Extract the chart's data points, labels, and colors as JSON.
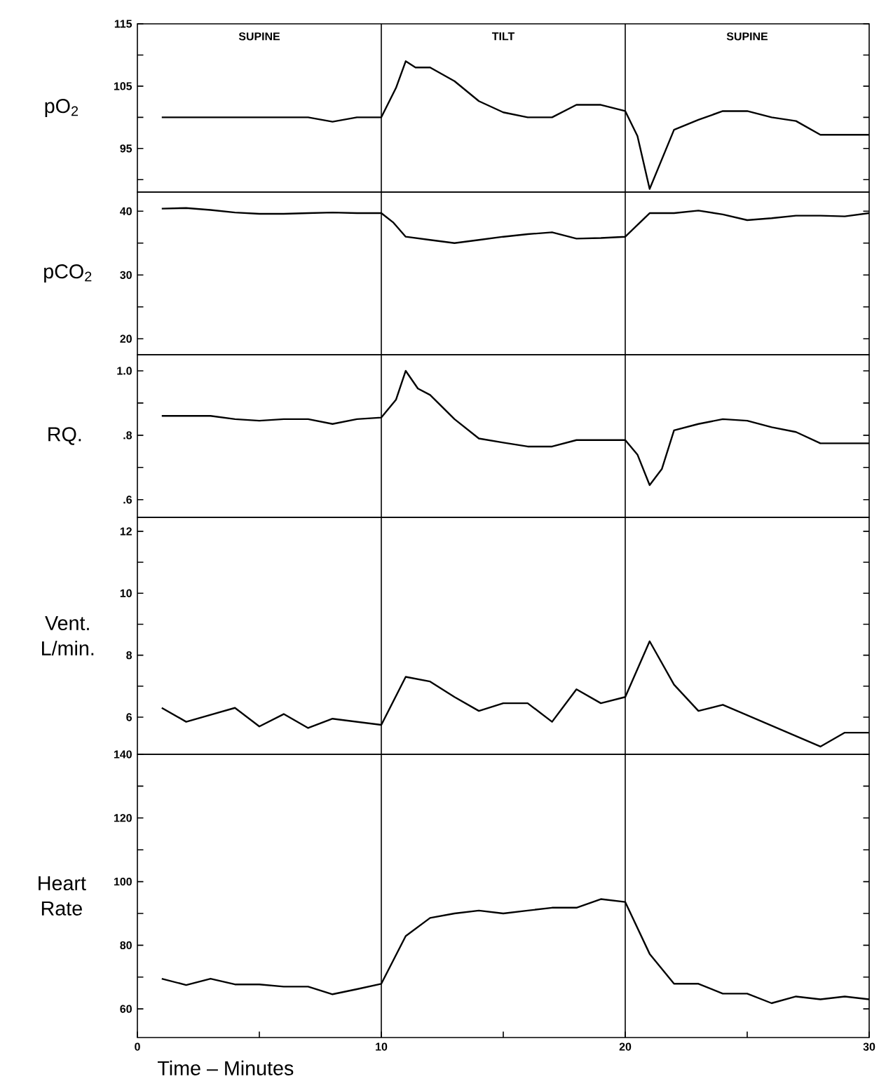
{
  "chart_data": [
    {
      "type": "line",
      "ylabel": "pO$_{2}$",
      "xlim": [
        0,
        30
      ],
      "ylim": [
        88,
        115
      ],
      "tick_labels": "y",
      "yticks": [
        {
          "value": 90,
          "label": null
        },
        95,
        {
          "value": 100,
          "label": null
        },
        105,
        {
          "value": 110,
          "label": null
        },
        115
      ],
      "x": [
        1,
        7,
        8,
        9,
        10,
        10.6,
        11,
        11.4,
        12,
        13,
        14,
        15,
        16,
        17,
        18,
        19,
        20,
        20.5,
        21,
        22,
        23,
        24,
        25,
        26,
        27,
        28,
        30
      ],
      "values": [
        100,
        100,
        99.3,
        100,
        100,
        104.7,
        109,
        108,
        108,
        105.8,
        102.6,
        100.8,
        100,
        100,
        102,
        102,
        101,
        97,
        88.5,
        98,
        99.6,
        101,
        101,
        100,
        99.4,
        97.2,
        97.2
      ],
      "color": "#000000",
      "ref_lines": [
        {
          "axis": "x",
          "value": 10,
          "color": "#000000"
        },
        {
          "axis": "x",
          "value": 20,
          "color": "#000000"
        }
      ],
      "annotations": [
        "SUPINE",
        "TILT",
        "SUPINE"
      ]
    },
    {
      "type": "line",
      "ylabel": "pCO$_{2}$",
      "xlim": [
        0,
        30
      ],
      "ylim": [
        17.5,
        43
      ],
      "tick_labels": "y",
      "yticks": [
        20,
        {
          "value": 25,
          "label": null
        },
        30,
        {
          "value": 35,
          "label": null
        },
        40
      ],
      "x": [
        1,
        2,
        3,
        4,
        5,
        6,
        7,
        8,
        9,
        10,
        10.5,
        11,
        12,
        13,
        14,
        15,
        16,
        17,
        18,
        19,
        20,
        21,
        22,
        23,
        24,
        25,
        26,
        27,
        28,
        29,
        30
      ],
      "values": [
        40.4,
        40.5,
        40.2,
        39.8,
        39.6,
        39.6,
        39.7,
        39.8,
        39.7,
        39.7,
        38.2,
        36,
        35.5,
        35,
        35.5,
        36,
        36.4,
        36.7,
        35.7,
        35.8,
        36,
        39.7,
        39.7,
        40.1,
        39.5,
        38.6,
        38.9,
        39.3,
        39.3,
        39.2,
        39.7
      ],
      "color": "#000000",
      "ref_lines": [
        {
          "axis": "x",
          "value": 10,
          "color": "#000000"
        },
        {
          "axis": "x",
          "value": 20,
          "color": "#000000"
        }
      ]
    },
    {
      "type": "line",
      "ylabel": "RQ.",
      "xlim": [
        0,
        30
      ],
      "ylim": [
        0.545,
        1.05
      ],
      "tick_labels": "y",
      "yticks": [
        {
          "value": 0.6,
          "label": ".6"
        },
        {
          "value": 0.7,
          "label": null
        },
        {
          "value": 0.8,
          "label": ".8"
        },
        {
          "value": 0.9,
          "label": null
        },
        {
          "value": 1.0,
          "label": "1.0"
        }
      ],
      "x": [
        1,
        2,
        3,
        4,
        5,
        6,
        7,
        8,
        9,
        10,
        10.6,
        11,
        11.5,
        12,
        13,
        14,
        15,
        16,
        17,
        18,
        19,
        20,
        20.5,
        21,
        21.5,
        22,
        23,
        24,
        25,
        26,
        27,
        28,
        30
      ],
      "values": [
        0.86,
        0.86,
        0.86,
        0.85,
        0.845,
        0.85,
        0.85,
        0.835,
        0.85,
        0.855,
        0.91,
        1.0,
        0.945,
        0.925,
        0.85,
        0.79,
        0.777,
        0.765,
        0.765,
        0.785,
        0.785,
        0.785,
        0.74,
        0.645,
        0.695,
        0.815,
        0.835,
        0.85,
        0.845,
        0.825,
        0.81,
        0.775,
        0.775
      ],
      "color": "#000000",
      "ref_lines": [
        {
          "axis": "x",
          "value": 10,
          "color": "#000000"
        },
        {
          "axis": "x",
          "value": 20,
          "color": "#000000"
        }
      ]
    },
    {
      "type": "line",
      "ylabel": "Vent. L/min.",
      "xlim": [
        0,
        30
      ],
      "ylim": [
        4.8,
        12.45
      ],
      "tick_labels": "y",
      "yticks": [
        6,
        {
          "value": 7,
          "label": null
        },
        8,
        {
          "value": 9,
          "label": null
        },
        10,
        {
          "value": 11,
          "label": null
        },
        12
      ],
      "x": [
        1,
        2,
        4,
        5,
        6,
        7,
        8,
        10,
        11,
        12,
        13,
        14,
        15,
        16,
        17,
        18,
        19,
        20,
        21,
        22,
        23,
        24,
        28,
        29,
        30
      ],
      "values": [
        6.3,
        5.85,
        6.3,
        5.7,
        6.1,
        5.65,
        5.95,
        5.75,
        7.3,
        7.15,
        6.65,
        6.2,
        6.45,
        6.45,
        5.85,
        6.9,
        6.45,
        6.65,
        8.45,
        7.05,
        6.2,
        6.4,
        5.05,
        5.5,
        5.5
      ],
      "color": "#000000",
      "ref_lines": [
        {
          "axis": "x",
          "value": 10,
          "color": "#000000"
        },
        {
          "axis": "x",
          "value": 20,
          "color": "#000000"
        }
      ]
    },
    {
      "type": "line",
      "ylabel": "Heart Rate",
      "xlabel": "Time – Minutes",
      "xlim": [
        0,
        30
      ],
      "ylim": [
        51,
        140
      ],
      "xticks": [
        0,
        {
          "value": 5,
          "label": null
        },
        10,
        {
          "value": 15,
          "label": null
        },
        20,
        {
          "value": 25,
          "label": null
        },
        30
      ],
      "yticks": [
        60,
        {
          "value": 70,
          "label": null
        },
        80,
        {
          "value": 90,
          "label": null
        },
        100,
        {
          "value": 110,
          "label": null
        },
        120,
        {
          "value": 130,
          "label": null
        },
        140
      ],
      "x": [
        1,
        2,
        3,
        4,
        5,
        6,
        7,
        8,
        9,
        10,
        11,
        12,
        13,
        14,
        15,
        16,
        17,
        18,
        19,
        20,
        21,
        22,
        23,
        24,
        25,
        26,
        27,
        28,
        29,
        30
      ],
      "values": [
        69.5,
        67.5,
        69.5,
        67.7,
        67.7,
        67,
        67,
        64.6,
        66.2,
        67.9,
        82.9,
        88.6,
        90,
        90.9,
        90,
        90.9,
        91.8,
        91.8,
        94.5,
        93.6,
        77.3,
        67.9,
        67.9,
        64.8,
        64.8,
        61.8,
        63.9,
        63,
        63.9,
        63
      ],
      "color": "#000000",
      "ref_lines": [
        {
          "axis": "x",
          "value": 10,
          "color": "#000000"
        },
        {
          "axis": "x",
          "value": 20,
          "color": "#000000"
        }
      ]
    }
  ]
}
